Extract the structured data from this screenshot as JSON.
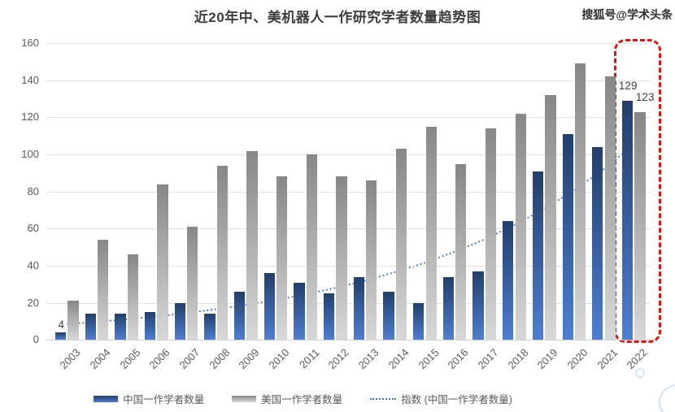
{
  "watermark": "搜狐号@学术头条",
  "chart_data": {
    "type": "bar",
    "title": "近20年中、美机器人一作研究学者数量趋势图",
    "categories": [
      "2003",
      "2004",
      "2005",
      "2006",
      "2007",
      "2008",
      "2009",
      "2010",
      "2011",
      "2012",
      "2013",
      "2014",
      "2015",
      "2016",
      "2017",
      "2018",
      "2019",
      "2020",
      "2021",
      "2022"
    ],
    "series": [
      {
        "name": "中国一作学者数量",
        "type": "bar",
        "color_top": "#223f6a",
        "color_bottom": "#4d7ed2",
        "values": [
          4,
          14,
          14,
          15,
          20,
          14,
          26,
          36,
          31,
          25,
          34,
          26,
          20,
          34,
          37,
          64,
          91,
          111,
          104,
          129
        ]
      },
      {
        "name": "美国一作学者数量",
        "type": "bar",
        "color_top": "#878787",
        "color_bottom": "#d8d8d8",
        "values": [
          21,
          54,
          46,
          84,
          61,
          94,
          102,
          88,
          100,
          88,
          86,
          103,
          115,
          95,
          114,
          122,
          132,
          149,
          142,
          123
        ]
      },
      {
        "name": "指数 (中国一作学者数量)",
        "type": "line",
        "line_style": "dotted",
        "color": "#4472c4",
        "values": [
          8.5,
          9.7,
          11.1,
          12.6,
          14.4,
          16.5,
          18.8,
          21.5,
          24.5,
          28.0,
          31.9,
          36.5,
          41.6,
          47.5,
          54.2,
          61.9,
          70.7,
          80.6,
          92.1,
          105.1
        ]
      }
    ],
    "ylim": [
      0,
      160
    ],
    "yticks": [
      0,
      20,
      40,
      60,
      80,
      100,
      120,
      140,
      160
    ],
    "grid": true,
    "legend_position": "bottom",
    "data_labels": [
      {
        "category": "2003",
        "series": 0,
        "text": "4"
      },
      {
        "category": "2022",
        "series": 0,
        "text": "129"
      },
      {
        "category": "2022",
        "series": 1,
        "text": "123"
      }
    ],
    "highlight_box": {
      "category": "2022",
      "color": "#e11414",
      "style": "dashed"
    }
  },
  "decor": {
    "circle_color": "#d9e7f7"
  }
}
